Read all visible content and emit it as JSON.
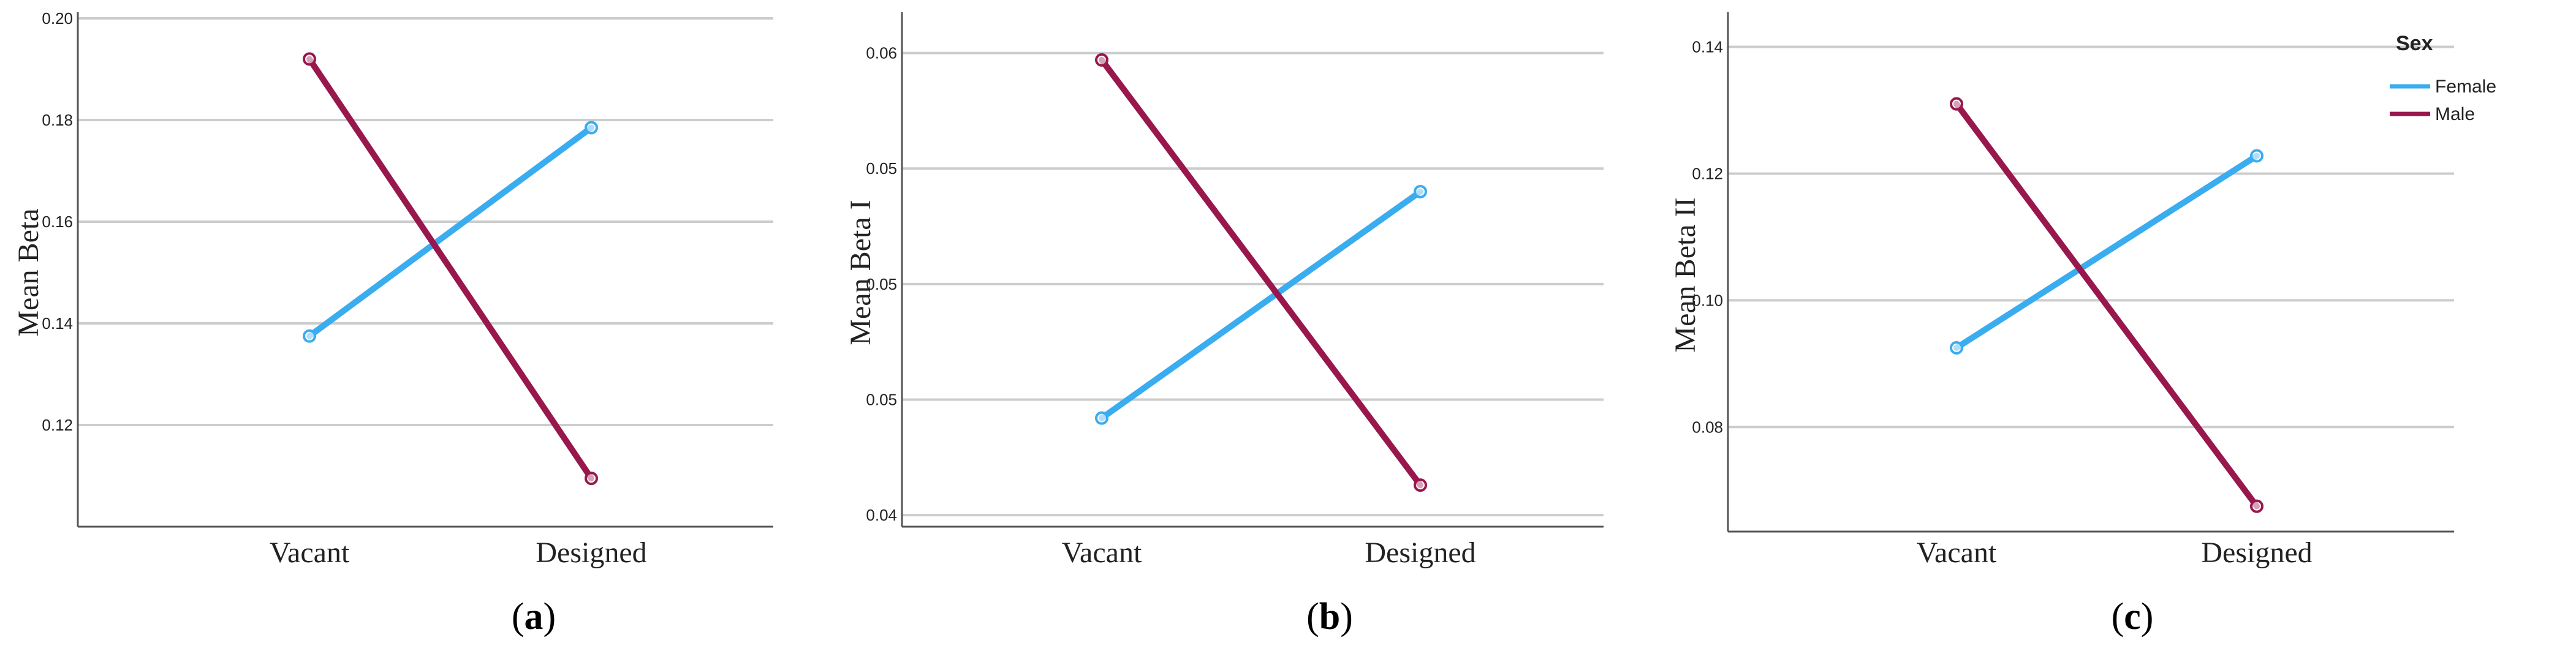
{
  "chart_data": [
    {
      "type": "line",
      "panel": "a",
      "caption": [
        "(",
        "a",
        ")"
      ],
      "categories": [
        "Vacant",
        "Designed"
      ],
      "ylabel": "Mean Beta",
      "ylim": [
        0.1,
        0.2
      ],
      "yticks": [
        0.2,
        0.18,
        0.16,
        0.14,
        0.12
      ],
      "ytick_labels": [
        "0.20",
        "0.18",
        "0.16",
        "0.14",
        "0.12"
      ],
      "series": [
        {
          "name": "Female",
          "values": [
            0.1375,
            0.1785
          ]
        },
        {
          "name": "Male",
          "values": [
            0.192,
            0.1095
          ]
        }
      ]
    },
    {
      "type": "line",
      "panel": "b",
      "caption": [
        "(",
        "b",
        ")"
      ],
      "categories": [
        "Vacant",
        "Designed"
      ],
      "ylabel": "Mean Beta I",
      "ylim": [
        0.0395,
        0.0615
      ],
      "yticks": [
        0.06,
        0.055,
        0.05,
        0.045,
        0.04
      ],
      "ytick_labels": [
        "0.06",
        "0.05",
        "0.05",
        "0.05",
        "0.04"
      ],
      "series": [
        {
          "name": "Female",
          "values": [
            0.0442,
            0.054
          ]
        },
        {
          "name": "Male",
          "values": [
            0.0597,
            0.0413
          ]
        }
      ]
    },
    {
      "type": "line",
      "panel": "c",
      "caption": [
        "(",
        "c",
        ")"
      ],
      "categories": [
        "Vacant",
        "Designed"
      ],
      "ylabel": "Mean Beta II",
      "ylim": [
        0.0635,
        0.1445
      ],
      "yticks": [
        0.14,
        0.12,
        0.1,
        0.08
      ],
      "ytick_labels": [
        "0.14",
        "0.12",
        "0.10",
        "0.08"
      ],
      "series": [
        {
          "name": "Female",
          "values": [
            0.0925,
            0.1228
          ]
        },
        {
          "name": "Male",
          "values": [
            0.131,
            0.0675
          ]
        }
      ]
    }
  ],
  "legend": {
    "title": "Sex",
    "placement": "top-right",
    "items": [
      {
        "label": "Female",
        "color": "#3aacf0"
      },
      {
        "label": "Male",
        "color": "#98174d"
      }
    ]
  },
  "colors": {
    "Female": "#3aacf0",
    "Male": "#98174d",
    "grid": "#cccccc",
    "axis": "#555555"
  }
}
